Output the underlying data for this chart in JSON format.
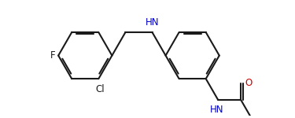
{
  "bg": "#ffffff",
  "bc": "#1a1a1a",
  "nc": "#0000cd",
  "oc": "#cc0000",
  "lw": 1.5,
  "dbo": 0.048,
  "fs": 8.5,
  "figsize": [
    3.75,
    1.5
  ],
  "dpi": 100,
  "xlim": [
    -0.5,
    5.5
  ],
  "ylim": [
    -0.9,
    2.0
  ],
  "BL": 0.68
}
